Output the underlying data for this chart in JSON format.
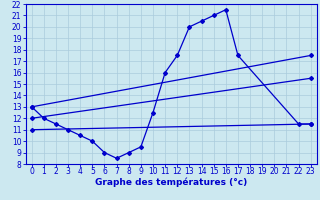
{
  "title": "Graphe des températures (°c)",
  "background_color": "#cce8f0",
  "grid_color": "#aaccdd",
  "line_color": "#0000cc",
  "spine_color": "#0000cc",
  "xlim": [
    -0.5,
    23.5
  ],
  "ylim": [
    8,
    22
  ],
  "xticks": [
    0,
    1,
    2,
    3,
    4,
    5,
    6,
    7,
    8,
    9,
    10,
    11,
    12,
    13,
    14,
    15,
    16,
    17,
    18,
    19,
    20,
    21,
    22,
    23
  ],
  "yticks": [
    8,
    9,
    10,
    11,
    12,
    13,
    14,
    15,
    16,
    17,
    18,
    19,
    20,
    21,
    22
  ],
  "line1_x": [
    0,
    1,
    2,
    3,
    4,
    5,
    6,
    7,
    8,
    9,
    10,
    11,
    12,
    13,
    14,
    15,
    16,
    17,
    22,
    23
  ],
  "line1_y": [
    13,
    12,
    11.5,
    11,
    10.5,
    10,
    9,
    8.5,
    9,
    9.5,
    12.5,
    16,
    17.5,
    20,
    20.5,
    21,
    21.5,
    17.5,
    11.5,
    11.5
  ],
  "line2_x": [
    0,
    23
  ],
  "line2_y": [
    13.0,
    17.5
  ],
  "line3_x": [
    0,
    23
  ],
  "line3_y": [
    12.0,
    15.5
  ],
  "line4_x": [
    0,
    23
  ],
  "line4_y": [
    11.0,
    11.5
  ],
  "marker": "D",
  "marker_size": 2,
  "linewidth": 0.9,
  "xlabel_fontsize": 6.5,
  "tick_fontsize": 5.5
}
